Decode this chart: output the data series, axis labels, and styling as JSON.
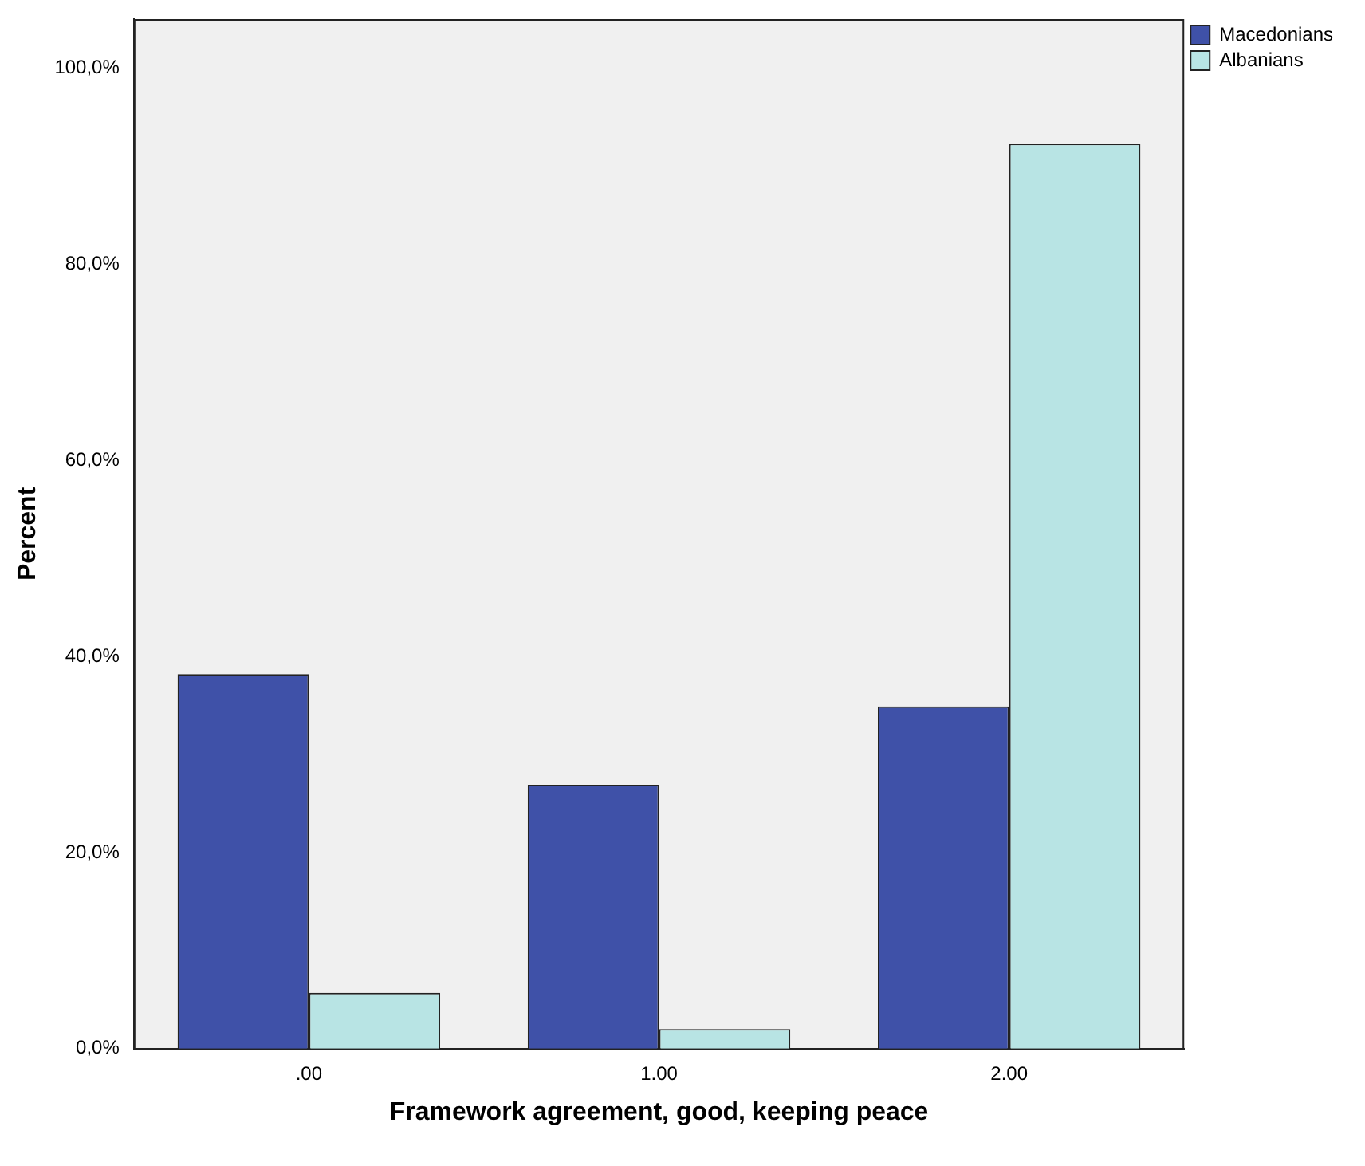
{
  "chart_data": {
    "type": "bar",
    "xlabel": "Framework agreement, good, keeping peace",
    "ylabel": "Percent",
    "categories": [
      ".00",
      "1.00",
      "2.00"
    ],
    "series": [
      {
        "name": "Macedonians",
        "color": "#3f51a8",
        "values": [
          38.2,
          26.9,
          34.9
        ]
      },
      {
        "name": "Albanians",
        "color": "#b8e4e4",
        "values": [
          5.7,
          2.0,
          92.3
        ]
      }
    ],
    "ylim": [
      0,
      105
    ],
    "yticks": [
      {
        "value": 0,
        "label": "0,0%"
      },
      {
        "value": 20,
        "label": "20,0%"
      },
      {
        "value": 40,
        "label": "40,0%"
      },
      {
        "value": 60,
        "label": "60,0%"
      },
      {
        "value": 80,
        "label": "80,0%"
      },
      {
        "value": 100,
        "label": "100,0%"
      }
    ],
    "grid": false,
    "legend": "top right"
  }
}
